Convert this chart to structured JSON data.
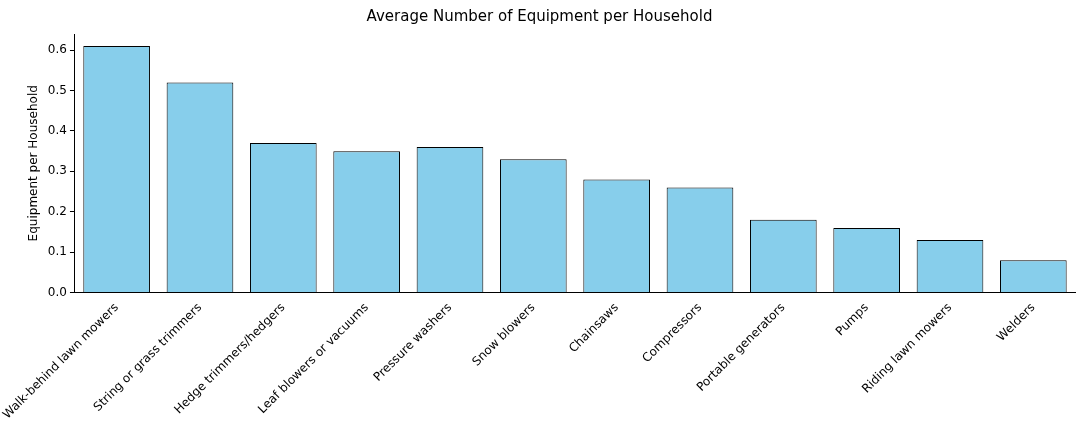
{
  "chart_data": {
    "type": "bar",
    "title": "Average Number of Equipment per Household",
    "ylabel": "Equipment per Household",
    "categories": [
      "Walk-behind lawn mowers",
      "String or grass trimmers",
      "Hedge trimmers/hedgers",
      "Leaf blowers or vacuums",
      "Pressure washers",
      "Snow blowers",
      "Chainsaws",
      "Compressors",
      "Portable generators",
      "Pumps",
      "Riding lawn mowers",
      "Welders"
    ],
    "values": [
      0.61,
      0.52,
      0.37,
      0.35,
      0.36,
      0.33,
      0.28,
      0.26,
      0.18,
      0.16,
      0.13,
      0.08
    ],
    "color": "#87ceeb",
    "ylim": [
      0,
      0.64
    ],
    "yticks": [
      {
        "value": 0,
        "label": "0.0"
      },
      0.1,
      0.2,
      0.3,
      0.4,
      0.5,
      0.6
    ],
    "grid": false,
    "legend": false
  }
}
